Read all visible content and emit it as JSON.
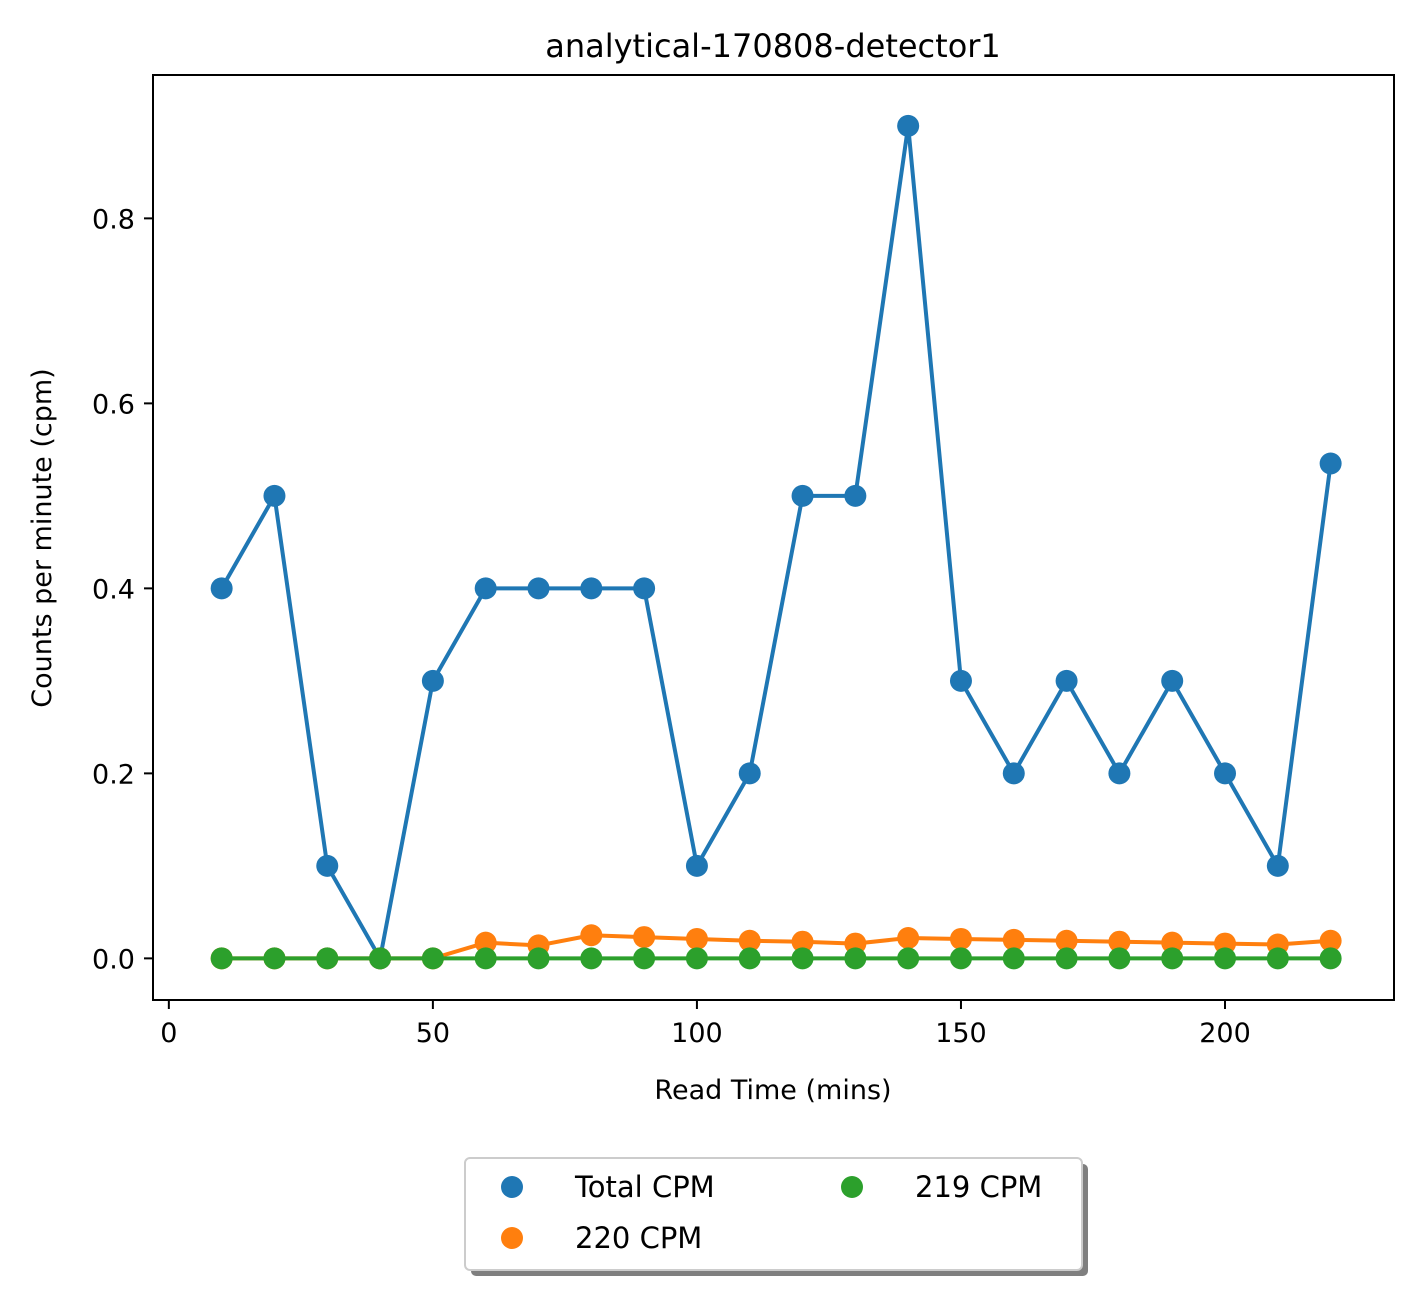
{
  "chart_data": {
    "type": "line",
    "title": "analytical-170808-detector1",
    "xlabel": "Read Time (mins)",
    "ylabel": "Counts per minute (cpm)",
    "xlim": [
      -3,
      232
    ],
    "ylim": [
      -0.045,
      0.955
    ],
    "xticks": [
      0,
      50,
      100,
      150,
      200
    ],
    "xtick_labels": [
      "0",
      "50",
      "100",
      "150",
      "200"
    ],
    "yticks": [
      0.0,
      0.2,
      0.4,
      0.6,
      0.8
    ],
    "ytick_labels": [
      "0.0",
      "0.2",
      "0.4",
      "0.6",
      "0.8"
    ],
    "grid": false,
    "legend": {
      "placement": "below-center",
      "columns": 2,
      "shadow": true
    },
    "x": [
      10,
      20,
      30,
      40,
      50,
      60,
      70,
      80,
      90,
      100,
      110,
      120,
      130,
      140,
      150,
      160,
      170,
      180,
      190,
      200,
      210,
      220
    ],
    "series": [
      {
        "name": "Total CPM",
        "color": "#1f77b4",
        "values": [
          0.4,
          0.5,
          0.1,
          0.0,
          0.3,
          0.4,
          0.4,
          0.4,
          0.4,
          0.1,
          0.2,
          0.5,
          0.5,
          0.9,
          0.3,
          0.2,
          0.3,
          0.2,
          0.3,
          0.2,
          0.1,
          0.535
        ]
      },
      {
        "name": "220 CPM",
        "color": "#ff7f0e",
        "values": [
          0.0,
          0.0,
          0.0,
          0.0,
          0.0,
          0.017,
          0.014,
          0.025,
          0.023,
          0.021,
          0.019,
          0.018,
          0.016,
          0.022,
          0.021,
          0.02,
          0.019,
          0.018,
          0.017,
          0.016,
          0.015,
          0.019
        ]
      },
      {
        "name": "219 CPM",
        "color": "#2ca02c",
        "values": [
          0.0,
          0.0,
          0.0,
          0.0,
          0.0,
          0.0,
          0.0,
          0.0,
          0.0,
          0.0,
          0.0,
          0.0,
          0.0,
          0.0,
          0.0,
          0.0,
          0.0,
          0.0,
          0.0,
          0.0,
          0.0,
          0.0
        ]
      }
    ]
  }
}
